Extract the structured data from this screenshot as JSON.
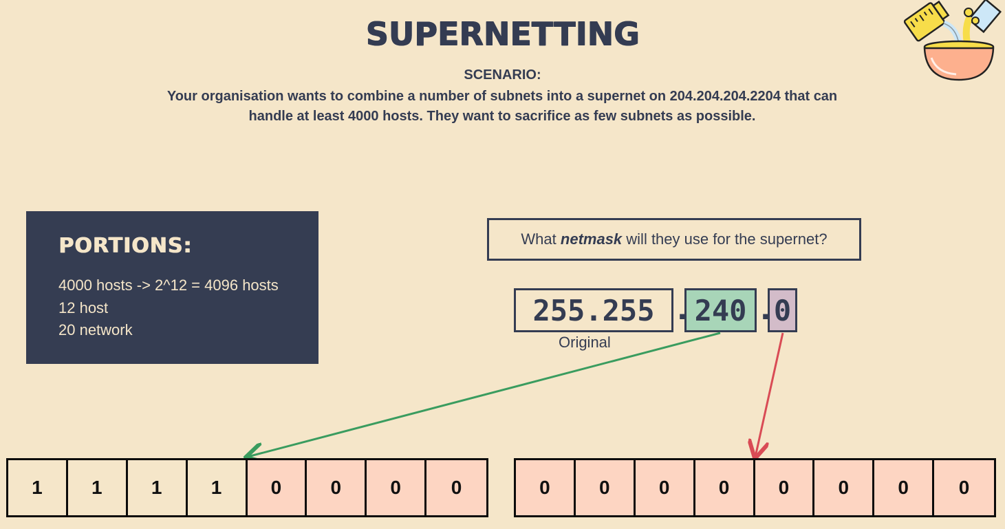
{
  "title": "SUPERNETTING",
  "scenario": {
    "label": "SCENARIO:",
    "line1": "Your organisation wants to combine a number of subnets into a supernet on 204.204.204.2204 that can",
    "line2": "handle at least 4000 hosts. They want to sacrifice as few subnets as possible."
  },
  "portions": {
    "title": "PORTIONS:",
    "lines": [
      "4000 hosts -> 2^12 = 4096 hosts",
      "12 host",
      "20 network"
    ]
  },
  "question": {
    "prefix": "What ",
    "emphasis": "netmask",
    "suffix": " will they use for the supernet?"
  },
  "netmask": {
    "original": "255.255",
    "third": "240",
    "fourth": "0",
    "dot": ".",
    "original_label": "Original"
  },
  "bits": {
    "third_octet": [
      "1",
      "1",
      "1",
      "1",
      "0",
      "0",
      "0",
      "0"
    ],
    "fourth_octet": [
      "0",
      "0",
      "0",
      "0",
      "0",
      "0",
      "0",
      "0"
    ]
  },
  "colors": {
    "background": "#f5e6c9",
    "dark": "#343c52",
    "third_highlight": "#a8d5b8",
    "fourth_highlight": "#d3bcc9",
    "zero_bit": "#fdd5c2",
    "green_arrow": "#3a9c5f",
    "red_arrow": "#d94b55"
  },
  "decoration": {
    "icon": "mixing-bowl-icon"
  }
}
